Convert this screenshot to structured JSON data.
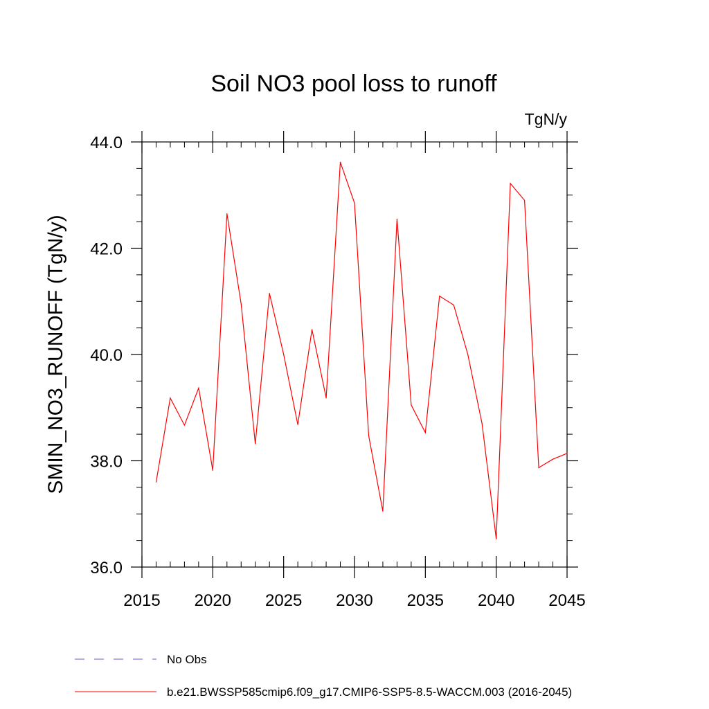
{
  "chart_data": {
    "type": "line",
    "title": "Soil NO3 pool loss to runoff",
    "units_label": "TgN/y",
    "xlabel": "",
    "ylabel": "SMIN_NO3_RUNOFF  (TgN/y)",
    "xlim": [
      2015,
      2045
    ],
    "ylim": [
      36.0,
      44.0
    ],
    "x_ticks": [
      2015,
      2020,
      2025,
      2030,
      2035,
      2040,
      2045
    ],
    "x_tick_labels": [
      "2015",
      "2020",
      "2025",
      "2030",
      "2035",
      "2040",
      "2045"
    ],
    "y_ticks": [
      36.0,
      38.0,
      40.0,
      42.0,
      44.0
    ],
    "y_tick_labels": [
      "36.0",
      "38.0",
      "40.0",
      "42.0",
      "44.0"
    ],
    "grid": false,
    "legend_position": "bottom",
    "series": [
      {
        "name": "b.e21.BWSSP585cmip6.f09_g17.CMIP6-SSP5-8.5-WACCM.003 (2016-2045)",
        "color": "#ff0000",
        "style": "solid",
        "x": [
          2016,
          2017,
          2018,
          2019,
          2020,
          2021,
          2022,
          2023,
          2024,
          2025,
          2026,
          2027,
          2028,
          2029,
          2030,
          2031,
          2032,
          2033,
          2034,
          2035,
          2036,
          2037,
          2038,
          2039,
          2040,
          2041,
          2042,
          2043,
          2044,
          2045
        ],
        "y": [
          37.6,
          39.18,
          38.67,
          39.37,
          37.82,
          42.65,
          40.95,
          38.32,
          41.15,
          40.0,
          38.68,
          40.47,
          39.18,
          43.62,
          42.85,
          38.47,
          37.05,
          42.55,
          39.05,
          38.53,
          41.1,
          40.93,
          40.0,
          38.7,
          36.53,
          43.22,
          42.9,
          37.87,
          38.03,
          38.14
        ]
      },
      {
        "name": "No Obs",
        "color": "#6a5acd",
        "style": "dashed",
        "x": [],
        "y": []
      }
    ]
  }
}
